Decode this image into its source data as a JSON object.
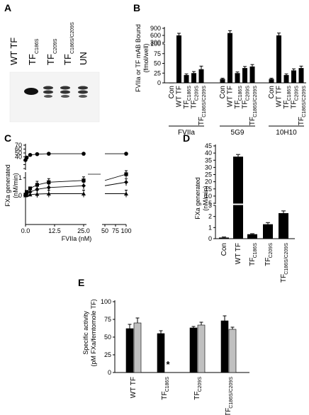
{
  "panels": {
    "A": {
      "label": "A",
      "lanes": [
        {
          "main": "WT TF",
          "sub": ""
        },
        {
          "main": "TF",
          "sub": "C186S"
        },
        {
          "main": "TF",
          "sub": "C209S"
        },
        {
          "main": "TF",
          "sub": "C186S/C209S"
        },
        {
          "main": "UN",
          "sub": ""
        }
      ]
    },
    "B": {
      "label": "B",
      "ylabel_line1": "FVIIa or TF mAB  Bound",
      "ylabel_line2": "(fmol/well)",
      "groups": [
        "FVIIa",
        "5G9",
        "10H10"
      ],
      "bar_labels": [
        {
          "main": "Con",
          "sub": ""
        },
        {
          "main": "WT TF",
          "sub": ""
        },
        {
          "main": "TF",
          "sub": "C186S"
        },
        {
          "main": "TF",
          "sub": "C209S"
        },
        {
          "main": "TF",
          "sub": "C186S/C209S"
        }
      ]
    },
    "C": {
      "label": "C",
      "ylabel_line1": "FXa generated",
      "ylabel_line2": "(nM/min)",
      "xlabel": "FVIIa (nM)"
    },
    "D": {
      "label": "D",
      "ylabel": "FXa generated",
      "ylabel2": "(nM/min)",
      "bar_labels": [
        {
          "main": "Con",
          "sub": ""
        },
        {
          "main": "WT TF",
          "sub": ""
        },
        {
          "main": "TF",
          "sub": "C186S"
        },
        {
          "main": "TF",
          "sub": "C209S"
        },
        {
          "main": "TF",
          "sub": "C186S/C209S"
        }
      ]
    },
    "E": {
      "label": "E",
      "ylabel_line1": "Specific activity",
      "ylabel_line2": "(pM FXa/femtomole TF)",
      "asterisk": "*",
      "bar_labels": [
        {
          "main": "WT TF",
          "sub": ""
        },
        {
          "main": "TF",
          "sub": "C186S"
        },
        {
          "main": "TF",
          "sub": "C209S"
        },
        {
          "main": "TF",
          "sub": "C186S/C209S"
        }
      ]
    }
  },
  "chart_data": [
    {
      "panel": "B",
      "type": "bar",
      "groups": [
        "FVIIa",
        "5G9",
        "10H10"
      ],
      "categories": [
        "Con",
        "WT TF",
        "TF C186S",
        "TF C209S",
        "TF C186S/C209S"
      ],
      "series": [
        {
          "name": "FVIIa",
          "values": [
            0,
            600,
            20,
            25,
            35
          ],
          "errors": [
            0,
            90,
            3,
            4,
            8
          ]
        },
        {
          "name": "5G9",
          "values": [
            10,
            700,
            25,
            38,
            42
          ],
          "errors": [
            2,
            100,
            3,
            4,
            5
          ]
        },
        {
          "name": "10H10",
          "values": [
            10,
            600,
            20,
            32,
            38
          ],
          "errors": [
            2,
            100,
            3,
            4,
            5
          ]
        }
      ],
      "y_ticks": [
        0,
        25,
        50,
        75,
        100,
        300,
        600,
        900
      ],
      "ylabel": "FVIIa or TF mAB  Bound (fmol/well)"
    },
    {
      "panel": "C",
      "type": "scatter",
      "x_ticks_left": [
        0.0,
        12.5,
        25.0
      ],
      "x_ticks_right": [
        50,
        75,
        100
      ],
      "y_ticks_lower": [
        0,
        1
      ],
      "y_ticks_upper": [
        10,
        20,
        30,
        40,
        50,
        60,
        70
      ],
      "xlabel": "FVIIa (nM)",
      "ylabel": "FXa generated (nM/min)",
      "series": [
        {
          "marker": "circle",
          "points": [
            [
              0,
              32
            ],
            [
              0.5,
              38
            ],
            [
              2,
              45
            ],
            [
              5,
              47
            ],
            [
              10,
              48
            ],
            [
              25,
              48
            ],
            [
              100,
              48
            ]
          ]
        },
        {
          "marker": "square",
          "points": [
            [
              0,
              0.05
            ],
            [
              0.5,
              0.2
            ],
            [
              2,
              0.4
            ],
            [
              5,
              0.6
            ],
            [
              10,
              0.75
            ],
            [
              25,
              0.85
            ],
            [
              100,
              1.2
            ]
          ]
        },
        {
          "marker": "diamond",
          "points": [
            [
              0,
              0.02
            ],
            [
              0.5,
              0.1
            ],
            [
              2,
              0.2
            ],
            [
              5,
              0.35
            ],
            [
              10,
              0.45
            ],
            [
              25,
              0.55
            ],
            [
              100,
              0.75
            ]
          ]
        },
        {
          "marker": "triangle",
          "points": [
            [
              0,
              0
            ],
            [
              0.5,
              0.02
            ],
            [
              2,
              0.05
            ],
            [
              5,
              0.08
            ],
            [
              10,
              0.1
            ],
            [
              25,
              0.1
            ],
            [
              100,
              0.1
            ]
          ]
        }
      ]
    },
    {
      "panel": "D",
      "type": "bar",
      "categories": [
        "Con",
        "WT TF",
        "TF C186S",
        "TF C209S",
        "TF C186S/C209S"
      ],
      "values": [
        0.1,
        37.5,
        0.4,
        1.3,
        2.3
      ],
      "errors": [
        0.05,
        1.5,
        0.05,
        0.15,
        0.2
      ],
      "y_ticks": [
        0,
        1,
        2,
        3,
        5,
        10,
        15,
        20,
        25,
        30,
        35,
        40,
        45
      ],
      "ylabel": "FXa generated (nM/min)"
    },
    {
      "panel": "E",
      "type": "bar",
      "categories": [
        "WT TF",
        "TF C186S",
        "TF C209S",
        "TF C186S/C209S"
      ],
      "series": [
        {
          "color": "#000000",
          "values": [
            62,
            55,
            63,
            73
          ],
          "errors": [
            6,
            4,
            2,
            7
          ]
        },
        {
          "color": "#c0c0c0",
          "values": [
            70,
            0,
            67,
            61
          ],
          "errors": [
            7,
            0,
            4,
            3
          ]
        }
      ],
      "ylim": [
        0,
        100
      ],
      "y_ticks": [
        0,
        25,
        50,
        75,
        100
      ],
      "ylabel": "Specific activity (pM FXa/femtomole TF)"
    }
  ]
}
